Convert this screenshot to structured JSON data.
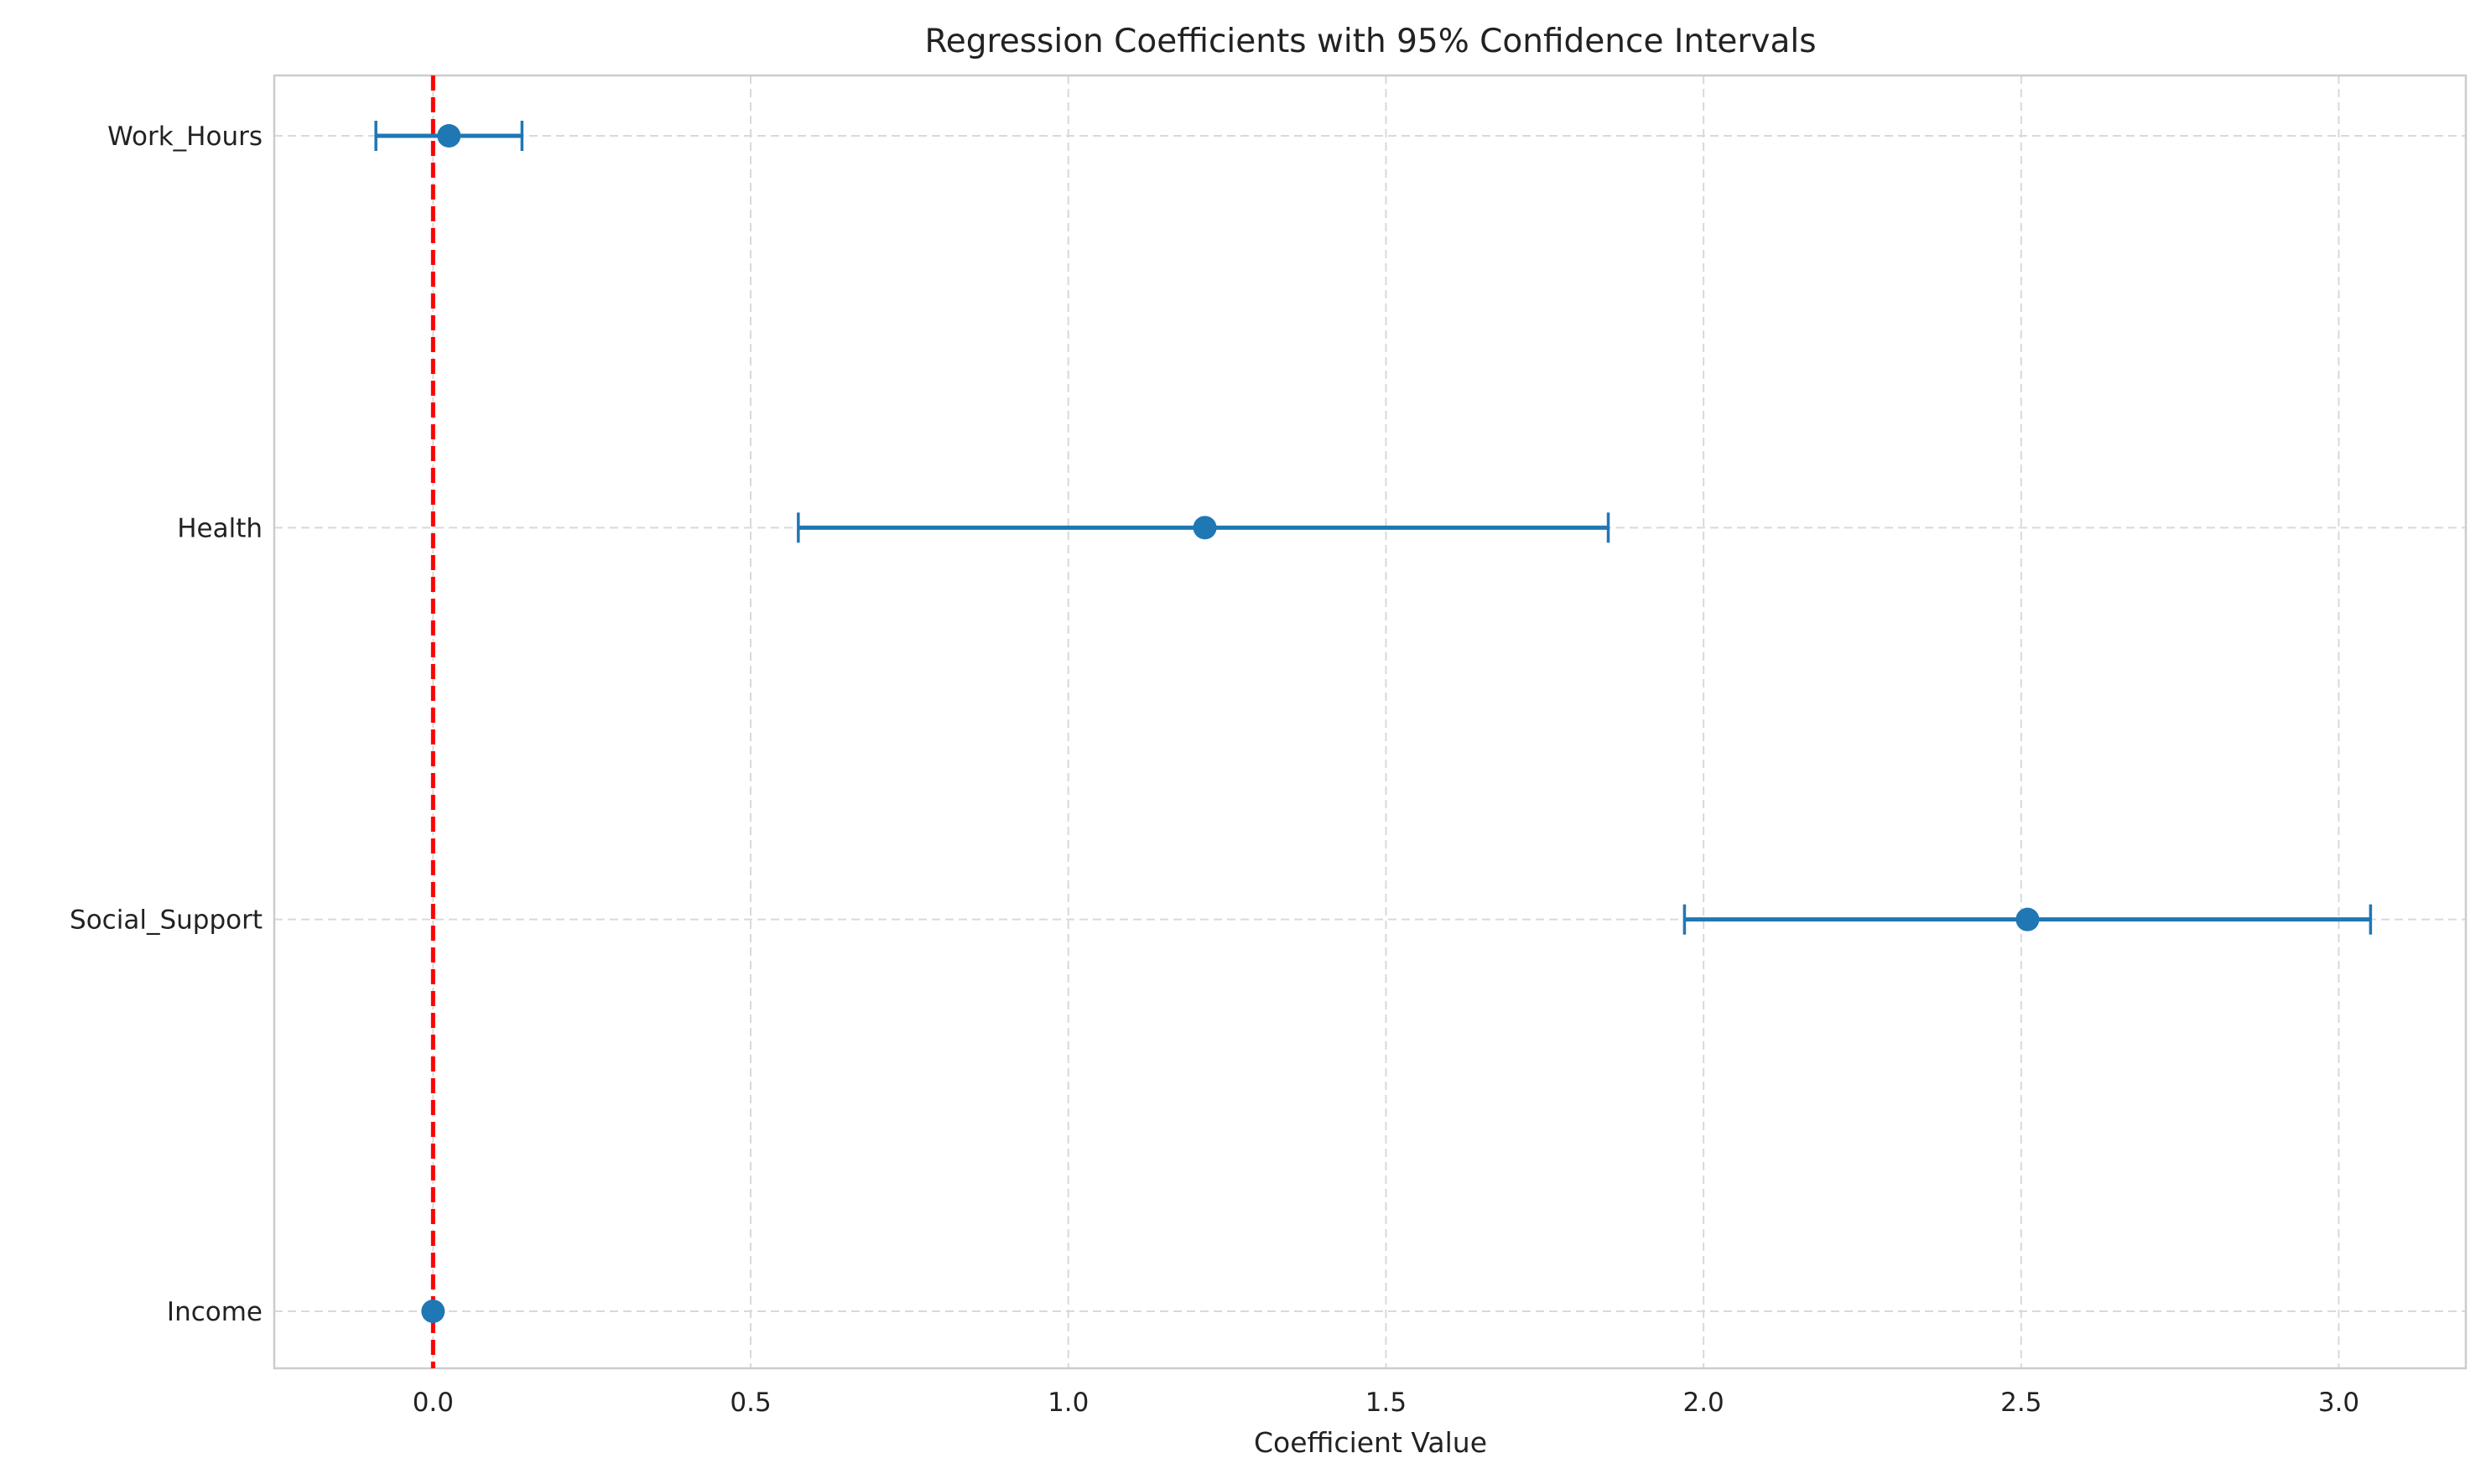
{
  "chart_data": {
    "type": "errorbar",
    "title": "Regression Coefficients with 95% Confidence Intervals",
    "xlabel": "Coefficient Value",
    "ylabel": "",
    "xlim": [
      -0.25,
      3.2
    ],
    "xticks": [
      0.0,
      0.5,
      1.0,
      1.5,
      2.0,
      2.5,
      3.0
    ],
    "xtick_labels": [
      "0.0",
      "0.5",
      "1.0",
      "1.5",
      "2.0",
      "2.5",
      "3.0"
    ],
    "grid": true,
    "reference_line": {
      "x": 0,
      "color": "#ff0000",
      "style": "dashed"
    },
    "categories": [
      "Work_Hours",
      "Health",
      "Social_Support",
      "Income"
    ],
    "points": [
      {
        "label": "Work_Hours",
        "coef": 0.025,
        "ci_low": -0.09,
        "ci_high": 0.14
      },
      {
        "label": "Health",
        "coef": 1.215,
        "ci_low": 0.575,
        "ci_high": 1.85
      },
      {
        "label": "Social_Support",
        "coef": 2.51,
        "ci_low": 1.97,
        "ci_high": 3.05
      },
      {
        "label": "Income",
        "coef": 0.0,
        "ci_low": -0.002,
        "ci_high": 0.002
      }
    ],
    "colors": {
      "marker": "#1f77b4",
      "errorbar": "#1f77b4",
      "grid": "#d9d9d9",
      "frame": "#cccccc"
    }
  }
}
